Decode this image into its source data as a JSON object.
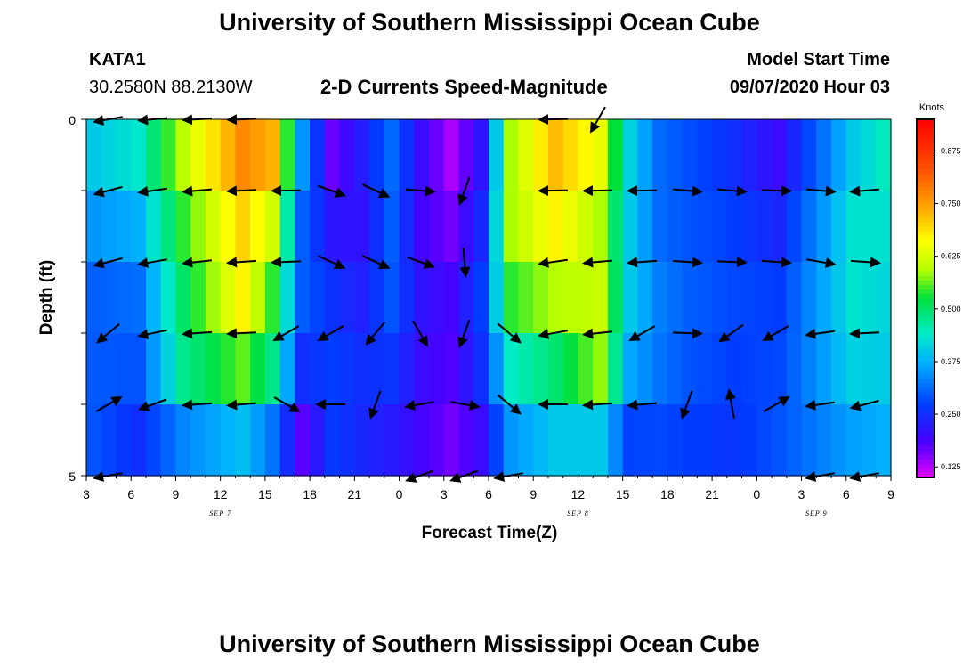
{
  "header": {
    "title_top": "University of Southern Mississippi Ocean Cube",
    "title_bottom": "University of Southern Mississippi Ocean Cube",
    "station": "KATA1",
    "coords": "30.2580N 88.2130W",
    "plot_title": "2-D Currents Speed-Magnitude",
    "model_start_label": "Model Start Time",
    "model_start_value": "09/07/2020 Hour 03"
  },
  "chart_data": {
    "type": "heatmap",
    "title": "2-D Currents Speed-Magnitude",
    "xlabel": "Forecast Time(Z)",
    "ylabel": "Depth (ft)",
    "x_tick_labels": [
      "3",
      "6",
      "9",
      "12",
      "15",
      "18",
      "21",
      "0",
      "3",
      "6",
      "9",
      "12",
      "15",
      "18",
      "21",
      "0",
      "3",
      "6",
      "9"
    ],
    "x_date_labels": [
      {
        "text": "SEP 7",
        "hour_index": 9
      },
      {
        "text": "SEP 8",
        "hour_index": 33
      },
      {
        "text": "SEP 9",
        "hour_index": 49
      }
    ],
    "y_range": [
      0,
      5
    ],
    "y_tick_labels": [
      "0",
      "5"
    ],
    "colorbar": {
      "unit": "Knots",
      "range": [
        0.1,
        0.95
      ],
      "ticks": [
        "0.125",
        "0.250",
        "0.375",
        "0.500",
        "0.625",
        "0.750",
        "0.875"
      ],
      "tick_values": [
        0.125,
        0.25,
        0.375,
        0.5,
        0.625,
        0.75,
        0.875
      ]
    },
    "key_points": [
      {
        "hour": 0,
        "values": [
          0.4,
          0.4,
          0.3,
          0.3,
          0.29,
          0.29
        ]
      },
      {
        "hour": 3,
        "values": [
          0.45,
          0.42,
          0.33,
          0.3,
          0.28,
          0.22
        ]
      },
      {
        "hour": 6,
        "values": [
          0.62,
          0.58,
          0.5,
          0.5,
          0.45,
          0.22
        ]
      },
      {
        "hour": 10,
        "values": [
          0.84,
          0.7,
          0.7,
          0.64,
          0.48,
          0.3
        ]
      },
      {
        "hour": 12,
        "values": [
          0.78,
          0.68,
          0.56,
          0.52,
          0.44,
          0.2
        ]
      },
      {
        "hour": 14,
        "values": [
          0.4,
          0.3,
          0.3,
          0.3,
          0.2,
          0.15
        ]
      },
      {
        "hour": 16,
        "values": [
          0.15,
          0.18,
          0.25,
          0.26,
          0.28,
          0.25
        ]
      },
      {
        "hour": 18,
        "values": [
          0.25,
          0.2,
          0.22,
          0.24,
          0.26,
          0.22
        ]
      },
      {
        "hour": 20,
        "values": [
          0.32,
          0.3,
          0.3,
          0.28,
          0.24,
          0.2
        ]
      },
      {
        "hour": 22,
        "values": [
          0.22,
          0.18,
          0.2,
          0.22,
          0.18,
          0.2
        ]
      },
      {
        "hour": 24,
        "values": [
          0.12,
          0.14,
          0.18,
          0.2,
          0.16,
          0.16
        ]
      },
      {
        "hour": 26,
        "values": [
          0.2,
          0.22,
          0.26,
          0.28,
          0.22,
          0.18
        ]
      },
      {
        "hour": 28,
        "values": [
          0.58,
          0.6,
          0.58,
          0.5,
          0.38,
          0.32
        ]
      },
      {
        "hour": 31,
        "values": [
          0.74,
          0.7,
          0.64,
          0.55,
          0.44,
          0.36
        ]
      },
      {
        "hour": 34,
        "values": [
          0.66,
          0.62,
          0.56,
          0.66,
          0.5,
          0.3
        ]
      },
      {
        "hour": 36,
        "values": [
          0.42,
          0.4,
          0.4,
          0.4,
          0.33,
          0.22
        ]
      },
      {
        "hour": 38,
        "values": [
          0.32,
          0.3,
          0.32,
          0.34,
          0.3,
          0.26
        ]
      },
      {
        "hour": 40,
        "values": [
          0.29,
          0.28,
          0.3,
          0.3,
          0.28,
          0.26
        ]
      },
      {
        "hour": 43,
        "values": [
          0.24,
          0.26,
          0.28,
          0.28,
          0.26,
          0.26
        ]
      },
      {
        "hour": 46,
        "values": [
          0.18,
          0.22,
          0.26,
          0.28,
          0.28,
          0.3
        ]
      },
      {
        "hour": 51,
        "values": [
          0.38,
          0.42,
          0.44,
          0.42,
          0.4,
          0.32
        ]
      },
      {
        "hour": 54,
        "values": [
          0.5,
          0.44,
          0.42,
          0.4,
          0.4,
          0.36
        ]
      }
    ],
    "arrow_directions_deg": [
      [
        -10,
        -5,
        -3,
        -2,
        null,
        null,
        null,
        null,
        null,
        null,
        -1,
        -60,
        null,
        null,
        null,
        null,
        null,
        null,
        null,
        null,
        null,
        null,
        null
      ],
      [
        -15,
        -8,
        -5,
        -3,
        -1,
        -160,
        -155,
        -175,
        -70,
        null,
        -1,
        -1,
        -1,
        -175,
        -175,
        -178,
        -175,
        -5
      ],
      [
        -15,
        -10,
        -6,
        -4,
        -2,
        -155,
        -155,
        -160,
        -95,
        null,
        -8,
        -5,
        -4,
        -176,
        -178,
        -176,
        -170,
        -176
      ],
      [
        -40,
        -12,
        -4,
        -3,
        -30,
        -30,
        -50,
        -120,
        -70,
        -140,
        -10,
        -6,
        -30,
        -178,
        -35,
        -30,
        -8,
        -3
      ],
      [
        150,
        -20,
        -4,
        -5,
        -150,
        0,
        -70,
        -10,
        -170,
        -140,
        0,
        -4,
        -5,
        -70,
        80,
        150,
        -8,
        -15,
        -35
      ],
      [
        -10,
        null,
        null,
        null,
        null,
        null,
        null,
        -20,
        -20,
        -10,
        null,
        null,
        null,
        null,
        null,
        null,
        -10,
        -10
      ]
    ]
  }
}
